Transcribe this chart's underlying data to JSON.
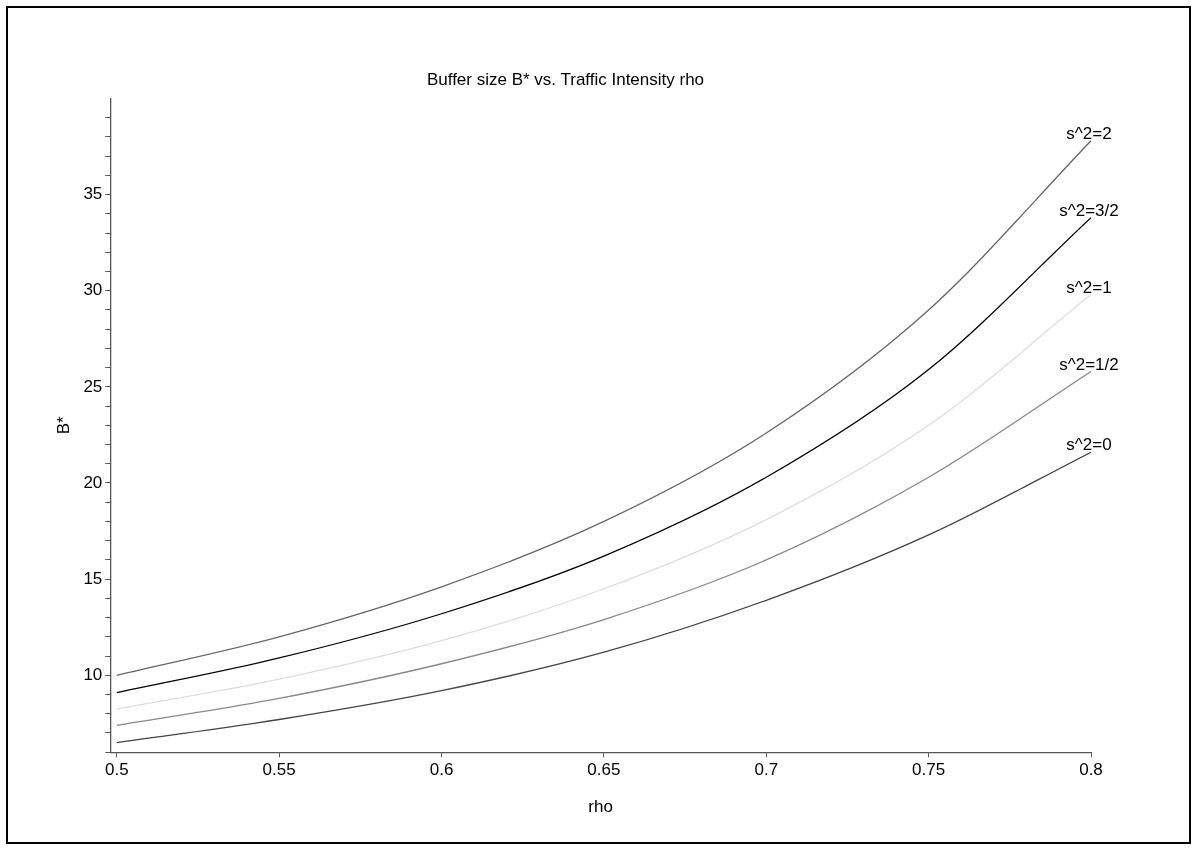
{
  "chart_data": {
    "type": "line",
    "title": "Buffer size B* vs. Traffic Intensity rho",
    "xlabel": "rho",
    "ylabel": "B*",
    "x": [
      0.5,
      0.55,
      0.6,
      0.65,
      0.7,
      0.75,
      0.8
    ],
    "xlim": [
      0.498,
      0.8
    ],
    "xticks": [
      0.5,
      0.55,
      0.6,
      0.65,
      0.7,
      0.75,
      0.8
    ],
    "ylim": [
      6,
      40
    ],
    "yticks": [
      {
        "value": 6,
        "label": null
      },
      {
        "value": 7,
        "label": null
      },
      {
        "value": 8,
        "label": null
      },
      {
        "value": 9,
        "label": null
      },
      10,
      {
        "value": 11,
        "label": null
      },
      {
        "value": 12,
        "label": null
      },
      {
        "value": 13,
        "label": null
      },
      {
        "value": 14,
        "label": null
      },
      15,
      {
        "value": 16,
        "label": null
      },
      {
        "value": 17,
        "label": null
      },
      {
        "value": 18,
        "label": null
      },
      {
        "value": 19,
        "label": null
      },
      20,
      {
        "value": 21,
        "label": null
      },
      {
        "value": 22,
        "label": null
      },
      {
        "value": 23,
        "label": null
      },
      {
        "value": 24,
        "label": null
      },
      25,
      {
        "value": 26,
        "label": null
      },
      {
        "value": 27,
        "label": null
      },
      {
        "value": 28,
        "label": null
      },
      {
        "value": 29,
        "label": null
      },
      30,
      {
        "value": 31,
        "label": null
      },
      {
        "value": 32,
        "label": null
      },
      {
        "value": 33,
        "label": null
      },
      {
        "value": 34,
        "label": null
      },
      35,
      {
        "value": 36,
        "label": null
      },
      {
        "value": 37,
        "label": null
      },
      {
        "value": 38,
        "label": null
      },
      {
        "value": 39,
        "label": null
      }
    ],
    "grid": false,
    "legend": false,
    "marker": "none",
    "line_style": "solid",
    "series": [
      {
        "name": "s^2=2",
        "color": "#666666",
        "values": [
          10,
          12.0,
          14.6,
          18.0,
          22.6,
          29.0,
          37.8
        ]
      },
      {
        "name": "s^2=3/2",
        "color": "#000000",
        "values": [
          9.1,
          10.9,
          13.2,
          16.2,
          20.3,
          25.9,
          33.8
        ]
      },
      {
        "name": "s^2=1",
        "color": "#dddddd",
        "values": [
          8.25,
          9.8,
          11.8,
          14.5,
          18.1,
          23.0,
          29.8
        ]
      },
      {
        "name": "s^2=1/2",
        "color": "#888888",
        "values": [
          7.4,
          8.8,
          10.6,
          12.9,
          16.0,
          20.3,
          25.8
        ]
      },
      {
        "name": "s^2=0",
        "color": "#444444",
        "values": [
          6.5,
          7.7,
          9.2,
          11.2,
          13.9,
          17.3,
          21.6
        ]
      }
    ]
  }
}
